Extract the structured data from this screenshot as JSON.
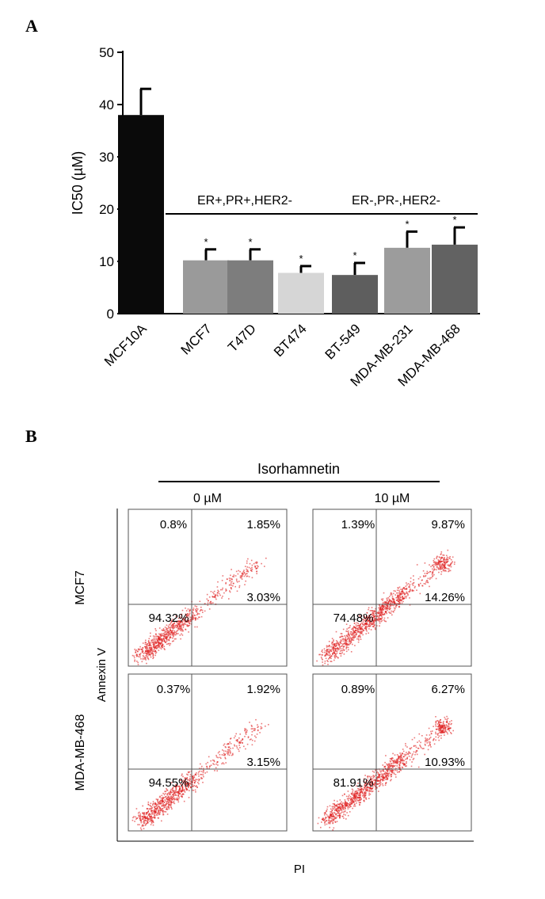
{
  "panels": {
    "a": {
      "letter": "A"
    },
    "b": {
      "letter": "B"
    }
  },
  "chart_data": [
    {
      "type": "bar",
      "ylabel": "IC50 (µM)",
      "ylim": [
        0,
        50
      ],
      "yticks": [
        0,
        10,
        20,
        30,
        40,
        50
      ],
      "categories": [
        "MCF10A",
        "MCF7",
        "T47D",
        "BT474",
        "BT-549",
        "MDA-MB-231",
        "MDA-MB-468"
      ],
      "values": [
        38,
        10.2,
        10.2,
        7.8,
        7.4,
        12.6,
        13.2
      ],
      "errors": [
        5,
        2.1,
        2.1,
        1.3,
        2.3,
        3.1,
        3.3
      ],
      "bar_colors": [
        "#0a0a0a",
        "#9a9a9a",
        "#7d7d7d",
        "#d6d6d6",
        "#5e5e5e",
        "#9c9c9c",
        "#626262"
      ],
      "significance": [
        "",
        "*",
        "*",
        "*",
        "*",
        "*",
        "*"
      ],
      "groups": [
        {
          "label": "ER+,PR+,HER2-",
          "from": 1,
          "to": 3
        },
        {
          "label": "ER-,PR-,HER2-",
          "from": 4,
          "to": 6
        }
      ]
    },
    {
      "type": "scatter",
      "title": "Isorhamnetin",
      "xlabel": "PI",
      "ylabel": "Annexin V",
      "columns": [
        "0 µM",
        "10 µM"
      ],
      "rows": [
        "MCF7",
        "MDA-MB-468"
      ],
      "point_color": "#e02020",
      "quadrants": [
        [
          {
            "ul": "0.8%",
            "ur": "1.85%",
            "ll": "94.32%",
            "lr": "3.03%"
          },
          {
            "ul": "1.39%",
            "ur": "9.87%",
            "ll": "74.48%",
            "lr": "14.26%"
          }
        ],
        [
          {
            "ul": "0.37%",
            "ur": "1.92%",
            "ll": "94.55%",
            "lr": "3.15%"
          },
          {
            "ul": "0.89%",
            "ur": "6.27%",
            "ll": "81.91%",
            "lr": "10.93%"
          }
        ]
      ]
    }
  ]
}
